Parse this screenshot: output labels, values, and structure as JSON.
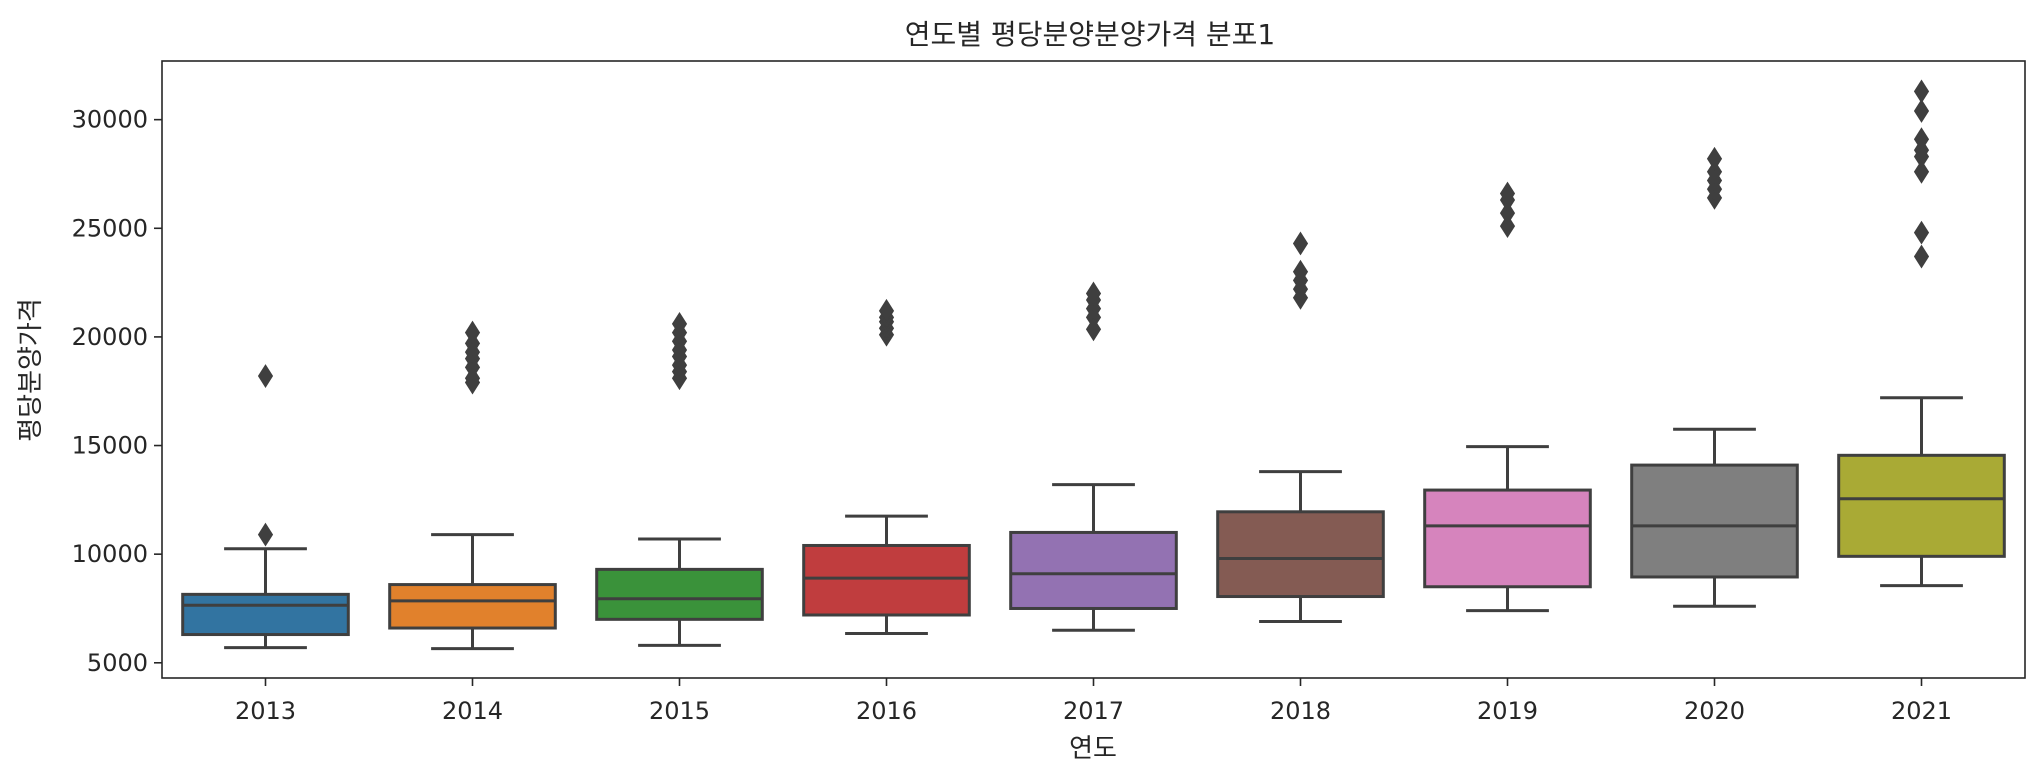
{
  "chart_data": {
    "type": "box",
    "title": "연도별 평당분양분양가격 분포1",
    "xlabel": "연도",
    "ylabel": "평당분양가격",
    "ylim": [
      4300,
      32700
    ],
    "yticks": [
      5000,
      10000,
      15000,
      20000,
      25000,
      30000
    ],
    "grid": false,
    "categories": [
      "2013",
      "2014",
      "2015",
      "2016",
      "2017",
      "2018",
      "2019",
      "2020",
      "2021"
    ],
    "boxes": [
      {
        "category": "2013",
        "color": "#3274a1",
        "whisker_low": 5700,
        "q1": 6300,
        "median": 7650,
        "q3": 8150,
        "whisker_high": 10250,
        "outliers": [
          10900,
          18200
        ]
      },
      {
        "category": "2014",
        "color": "#e1812c",
        "whisker_low": 5650,
        "q1": 6600,
        "median": 7850,
        "q3": 8600,
        "whisker_high": 10900,
        "outliers": [
          17900,
          18100,
          18600,
          19000,
          19300,
          19700,
          20200
        ]
      },
      {
        "category": "2015",
        "color": "#3a923a",
        "whisker_low": 5800,
        "q1": 7000,
        "median": 7950,
        "q3": 9300,
        "whisker_high": 10700,
        "outliers": [
          18100,
          18400,
          18700,
          19100,
          19400,
          19800,
          20200,
          20600
        ]
      },
      {
        "category": "2016",
        "color": "#c03d3e",
        "whisker_low": 6350,
        "q1": 7200,
        "median": 8900,
        "q3": 10400,
        "whisker_high": 11750,
        "outliers": [
          20100,
          20400,
          20700,
          20900,
          21200
        ]
      },
      {
        "category": "2017",
        "color": "#9372b2",
        "whisker_low": 6500,
        "q1": 7500,
        "median": 9100,
        "q3": 11000,
        "whisker_high": 13200,
        "outliers": [
          20350,
          20900,
          21300,
          21700,
          22000
        ]
      },
      {
        "category": "2018",
        "color": "#845b53",
        "whisker_low": 6900,
        "q1": 8050,
        "median": 9800,
        "q3": 11950,
        "whisker_high": 13800,
        "outliers": [
          21800,
          22200,
          22600,
          23000,
          24300
        ]
      },
      {
        "category": "2019",
        "color": "#d684bd",
        "whisker_low": 7400,
        "q1": 8500,
        "median": 11300,
        "q3": 12950,
        "whisker_high": 14950,
        "outliers": [
          25100,
          25700,
          26300,
          26600
        ]
      },
      {
        "category": "2020",
        "color": "#7f7f7f",
        "whisker_low": 7600,
        "q1": 8950,
        "median": 11300,
        "q3": 14100,
        "whisker_high": 15750,
        "outliers": [
          26400,
          26800,
          27200,
          27600,
          28200
        ]
      },
      {
        "category": "2021",
        "color": "#a9aa35",
        "whisker_low": 8550,
        "q1": 9900,
        "median": 12550,
        "q3": 14550,
        "whisker_high": 17200,
        "outliers": [
          23700,
          24800,
          27600,
          28300,
          28600,
          29100,
          30400,
          31300
        ]
      }
    ]
  }
}
